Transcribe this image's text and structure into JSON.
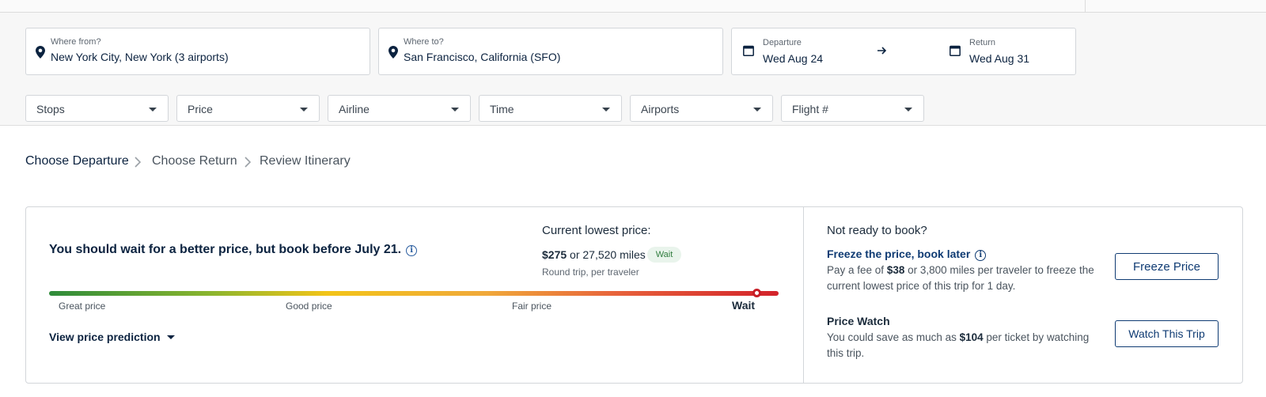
{
  "search": {
    "from": {
      "label": "Where from?",
      "value": "New York City, New York (3 airports)"
    },
    "to": {
      "label": "Where to?",
      "value": "San Francisco, California (SFO)"
    },
    "departure": {
      "label": "Departure",
      "value": "Wed Aug 24"
    },
    "return": {
      "label": "Return",
      "value": "Wed Aug 31"
    }
  },
  "filters": [
    "Stops",
    "Price",
    "Airline",
    "Time",
    "Airports",
    "Flight #"
  ],
  "breadcrumb": [
    "Choose Departure",
    "Choose Return",
    "Review Itinerary"
  ],
  "prediction": {
    "headline": "You should wait for a better price, but book before July 21.",
    "current_title": "Current lowest price:",
    "price": "$275",
    "price_or": "or 27,520 miles",
    "badge": "Wait",
    "price_sub": "Round trip, per traveler",
    "scale_labels": [
      "Great price",
      "Good price",
      "Fair price",
      "Wait"
    ],
    "indicator_level": 0.97,
    "view_link": "View price prediction"
  },
  "side": {
    "title": "Not ready to book?",
    "freeze": {
      "title": "Freeze the price, book later",
      "text_a": "Pay a fee of ",
      "fee": "$38",
      "text_b": " or 3,800 miles per traveler to freeze the current lowest price of this trip for 1 day.",
      "button": "Freeze Price"
    },
    "watch": {
      "title": "Price Watch",
      "text_a": "You could save as much as ",
      "amount": "$104",
      "text_b": " per ticket by watching this trip.",
      "button": "Watch This Trip"
    }
  },
  "colors": {
    "brand": "#0c2340",
    "wait": "#c71f27",
    "badge_bg": "#e9f4ec"
  },
  "icons": [
    "location-pin-icon",
    "calendar-icon",
    "arrow-right-icon",
    "chevron-right-icon",
    "caret-down-icon",
    "info-icon"
  ]
}
